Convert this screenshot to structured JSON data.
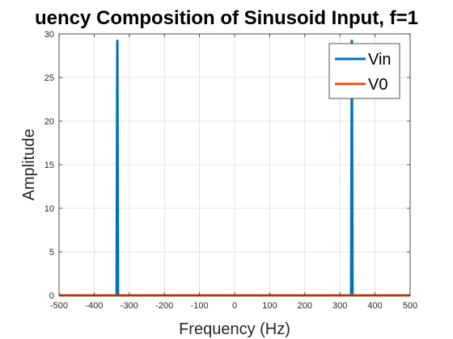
{
  "chart_data": {
    "type": "line",
    "title": "uency Composition of Sinusoid Input, f=1",
    "xlabel": "Frequency (Hz)",
    "ylabel": "Amplitude",
    "xlim": [
      -500,
      500
    ],
    "ylim": [
      0,
      30
    ],
    "xticks": [
      -500,
      -400,
      -300,
      -200,
      -100,
      0,
      100,
      200,
      300,
      400,
      500
    ],
    "yticks": [
      0,
      5,
      10,
      15,
      20,
      25,
      30
    ],
    "grid": true,
    "legend": {
      "placement": "top-right",
      "entries": [
        "Vin",
        "V0"
      ]
    },
    "series": [
      {
        "name": "Vin",
        "color": "#0072BD",
        "x": [
          -500,
          -336,
          -334,
          -332,
          332,
          334,
          336,
          500
        ],
        "y": [
          0,
          0,
          29.2,
          0,
          0,
          29.2,
          0,
          0
        ]
      },
      {
        "name": "V0",
        "color": "#D95319",
        "x": [
          -500,
          500
        ],
        "y": [
          0,
          0
        ]
      }
    ]
  }
}
